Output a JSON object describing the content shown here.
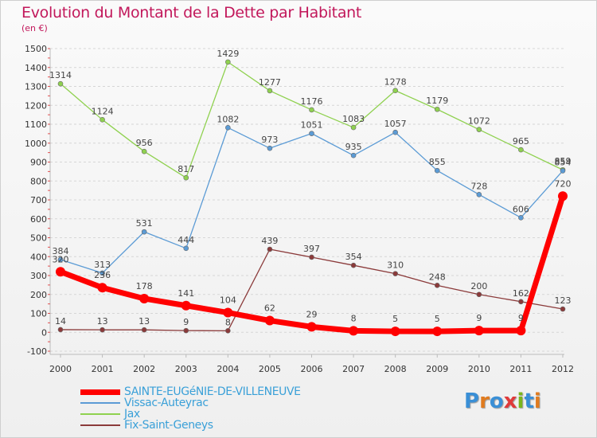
{
  "header": {
    "title": "Evolution du Montant de la Dette par Habitant",
    "subtitle": "(en €)"
  },
  "logo": {
    "text": "Proxiti",
    "letter_colors": [
      "#3a8fd6",
      "#e07b1f",
      "#3a8fd6",
      "#e03a3a",
      "#7ab51d",
      "#3a8fd6",
      "#e07b1f"
    ]
  },
  "chart_data": {
    "type": "line",
    "title": "Evolution du Montant de la Dette par Habitant",
    "ylabel": "(en €)",
    "xlabel": "",
    "x": [
      "2000",
      "2001",
      "2002",
      "2003",
      "2004",
      "2005",
      "2006",
      "2007",
      "2008",
      "2009",
      "2010",
      "2011",
      "2012"
    ],
    "ylim": [
      -100,
      1500
    ],
    "yticks": [
      "-100",
      "0",
      "100",
      "200",
      "300",
      "400",
      "500",
      "600",
      "700",
      "800",
      "900",
      "1000",
      "1100",
      "1200",
      "1300",
      "1400",
      "1500"
    ],
    "grid": "horizontal",
    "legend_position": "bottom-left",
    "series": [
      {
        "name": "SAINTE-EUGéNIE-DE-VILLENEUVE",
        "color": "#ff0000",
        "values": [
          320,
          236,
          178,
          141,
          104,
          62,
          29,
          8,
          5,
          5,
          9,
          9,
          720
        ],
        "labels": [
          "320",
          "236",
          "178",
          "141",
          "104",
          "62",
          "29",
          "8",
          "5",
          "5",
          "9",
          "9",
          "720"
        ]
      },
      {
        "name": "Vissac-Auteyrac",
        "color": "#5b9bd5",
        "values": [
          384,
          313,
          531,
          444,
          1082,
          973,
          1051,
          935,
          1057,
          855,
          728,
          606,
          854
        ],
        "labels": [
          "384",
          "313",
          "531",
          "444",
          "1082",
          "973",
          "1051",
          "935",
          "1057",
          "855",
          "728",
          "606",
          "854"
        ]
      },
      {
        "name": "Jax",
        "color": "#8fd14f",
        "values": [
          1314,
          1124,
          956,
          817,
          1429,
          1277,
          1176,
          1083,
          1278,
          1179,
          1072,
          965,
          859
        ],
        "labels": [
          "1314",
          "1124",
          "956",
          "817",
          "1429",
          "1277",
          "1176",
          "1083",
          "1278",
          "1179",
          "1072",
          "965",
          "859"
        ]
      },
      {
        "name": "Fix-Saint-Geneys",
        "color": "#8b3a3a",
        "values": [
          14,
          13,
          13,
          9,
          8,
          439,
          397,
          354,
          310,
          248,
          200,
          162,
          123
        ],
        "labels": [
          "14",
          "13",
          "13",
          "9",
          "8",
          "439",
          "397",
          "354",
          "310",
          "248",
          "200",
          "162",
          "123"
        ]
      }
    ]
  }
}
